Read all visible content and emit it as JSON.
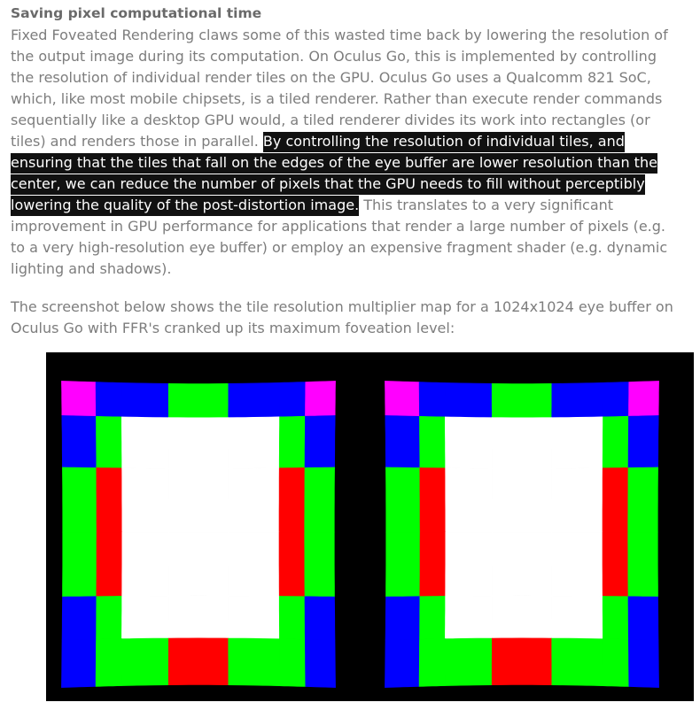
{
  "article": {
    "heading": "Saving pixel computational time",
    "paragraph1_lines": [
      {
        "pre": "Fixed Foveated Rendering claws some of this wasted time back by lowering the resolution of",
        "hl": "",
        "post": ""
      },
      {
        "pre": "the output image during its computation. On Oculus Go, this is implemented by controlling",
        "hl": "",
        "post": ""
      },
      {
        "pre": "the resolution of individual render tiles on the GPU. Oculus Go uses a Qualcomm 821 SoC,",
        "hl": "",
        "post": ""
      },
      {
        "pre": "which, like most mobile chipsets, is a tiled renderer. Rather than execute render commands",
        "hl": "",
        "post": ""
      },
      {
        "pre": "sequentially like a desktop GPU would, a tiled renderer divides its work into rectangles (or",
        "hl": "",
        "post": ""
      },
      {
        "pre": "tiles) and renders those in parallel. ",
        "hl": "By controlling the resolution of individual tiles, and",
        "post": ""
      },
      {
        "pre": "",
        "hl": "ensuring that the tiles that fall on the edges of the eye buffer are lower resolution than the",
        "post": ""
      },
      {
        "pre": "",
        "hl": "center, we can reduce the number of pixels that the GPU needs to fill without perceptibly",
        "post": ""
      },
      {
        "pre": "",
        "hl": "lowering the quality of the post-distortion image.",
        "post": " This translates to a very significant"
      },
      {
        "pre": "improvement in GPU performance for applications that render a large number of pixels (e.g.",
        "hl": "",
        "post": ""
      },
      {
        "pre": "to a very high-resolution eye buffer) or employ an expensive fragment shader (e.g. dynamic",
        "hl": "",
        "post": ""
      },
      {
        "pre": "lighting and shadows).",
        "hl": "",
        "post": ""
      }
    ],
    "paragraph2_lines": [
      "The screenshot below shows the tile resolution multiplier map for a 1024x1024 eye buffer on",
      "Oculus Go with FFR's cranked up its maximum foveation level:"
    ]
  },
  "figure": {
    "background": "#000000",
    "colors": {
      "center": "#ffffff",
      "green": "#00ff00",
      "red": "#ff0000",
      "blue": "#0000ff",
      "magenta": "#ff00ff"
    },
    "grid_pattern": [
      [
        "M",
        "B",
        "B",
        "G",
        "B",
        "B",
        "M"
      ],
      [
        "B",
        "G",
        "W",
        "W",
        "W",
        "G",
        "B"
      ],
      [
        "G",
        "R",
        "W",
        "W",
        "W",
        "R",
        "G"
      ],
      [
        "G",
        "R",
        "W",
        "W",
        "W",
        "R",
        "G"
      ],
      [
        "B",
        "G",
        "W",
        "W",
        "W",
        "G",
        "B"
      ],
      [
        "B",
        "G",
        "G",
        "R",
        "G",
        "G",
        "B"
      ]
    ]
  }
}
